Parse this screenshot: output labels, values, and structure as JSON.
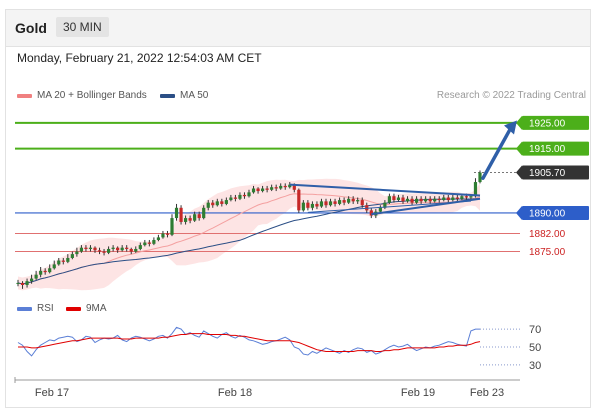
{
  "header": {
    "instrument": "Gold",
    "timeframe": "30 MIN"
  },
  "datetime": "Monday, February 21, 2022 12:54:03 AM CET",
  "legend": {
    "main": [
      {
        "label": "MA 20 + Bollinger Bands",
        "color": "#f08080"
      },
      {
        "label": "MA 50",
        "color": "#2b4f86"
      }
    ],
    "rsi": [
      {
        "label": "RSI",
        "color": "#5b7fd6"
      },
      {
        "label": "9MA",
        "color": "#e00000"
      }
    ]
  },
  "copyright": "Research © 2022 Trading Central",
  "colors": {
    "green": "#4caf1a",
    "blue": "#2d5ec9",
    "red": "#cc2222",
    "dark": "#333333",
    "arrow": "#2f5fa8"
  },
  "chart_data": [
    {
      "type": "candlestick",
      "ylim": [
        1862,
        1930
      ],
      "levels": [
        {
          "value": 1925.0,
          "label": "1925.00",
          "style": "green-box"
        },
        {
          "value": 1915.0,
          "label": "1915.00",
          "style": "green-box"
        },
        {
          "value": 1905.7,
          "label": "1905.70",
          "style": "dark-box"
        },
        {
          "value": 1890.0,
          "label": "1890.00",
          "style": "blue-box"
        },
        {
          "value": 1882.0,
          "label": "1882.00",
          "style": "red-text"
        },
        {
          "value": 1875.0,
          "label": "1875.00",
          "style": "red-text"
        }
      ],
      "x_ticks": [
        "Feb 17",
        "Feb 18",
        "Feb 19",
        "Feb 23"
      ],
      "candles": [
        [
          1862.5,
          1862.8,
          1861.5,
          1864.0
        ],
        [
          1862.8,
          1862.0,
          1860.5,
          1863.5
        ],
        [
          1862.0,
          1863.5,
          1861.0,
          1864.5
        ],
        [
          1863.5,
          1864.5,
          1862.5,
          1866.0
        ],
        [
          1864.5,
          1866.0,
          1864.0,
          1867.5
        ],
        [
          1866.0,
          1867.5,
          1865.0,
          1869.0
        ],
        [
          1867.5,
          1867.0,
          1866.0,
          1868.5
        ],
        [
          1867.0,
          1868.5,
          1866.5,
          1870.0
        ],
        [
          1868.5,
          1870.0,
          1868.0,
          1871.5
        ],
        [
          1870.0,
          1871.5,
          1869.5,
          1872.5
        ],
        [
          1871.5,
          1871.0,
          1870.0,
          1872.5
        ],
        [
          1871.0,
          1872.5,
          1870.5,
          1874.0
        ],
        [
          1872.5,
          1874.0,
          1872.0,
          1875.0
        ],
        [
          1874.0,
          1875.0,
          1873.0,
          1876.5
        ],
        [
          1875.0,
          1876.5,
          1874.5,
          1877.5
        ],
        [
          1876.5,
          1876.0,
          1875.0,
          1877.5
        ],
        [
          1876.0,
          1876.5,
          1875.0,
          1877.5
        ],
        [
          1876.5,
          1875.5,
          1874.5,
          1877.0
        ],
        [
          1875.5,
          1875.0,
          1874.0,
          1876.5
        ],
        [
          1875.0,
          1874.5,
          1873.5,
          1876.0
        ],
        [
          1874.5,
          1876.0,
          1874.0,
          1877.0
        ],
        [
          1876.0,
          1876.5,
          1875.0,
          1877.5
        ],
        [
          1876.5,
          1875.5,
          1874.5,
          1877.0
        ],
        [
          1875.5,
          1876.5,
          1875.0,
          1877.5
        ],
        [
          1876.5,
          1876.0,
          1875.0,
          1877.5
        ],
        [
          1876.0,
          1875.0,
          1874.0,
          1876.5
        ],
        [
          1875.0,
          1876.0,
          1874.5,
          1877.0
        ],
        [
          1876.0,
          1877.5,
          1875.5,
          1878.5
        ],
        [
          1877.5,
          1878.5,
          1877.0,
          1879.5
        ],
        [
          1878.5,
          1878.0,
          1877.0,
          1879.5
        ],
        [
          1878.0,
          1879.5,
          1877.5,
          1880.5
        ],
        [
          1879.5,
          1880.5,
          1879.0,
          1881.5
        ],
        [
          1880.5,
          1882.0,
          1880.0,
          1883.0
        ],
        [
          1882.0,
          1881.5,
          1880.5,
          1883.0
        ],
        [
          1881.5,
          1888.0,
          1881.0,
          1889.5
        ],
        [
          1888.0,
          1892.0,
          1887.0,
          1893.5
        ],
        [
          1892.0,
          1886.5,
          1885.5,
          1893.0
        ],
        [
          1886.5,
          1888.0,
          1885.5,
          1889.0
        ],
        [
          1888.0,
          1887.0,
          1886.0,
          1889.0
        ],
        [
          1887.0,
          1889.5,
          1886.5,
          1890.5
        ],
        [
          1889.5,
          1888.0,
          1887.0,
          1890.5
        ],
        [
          1888.0,
          1892.0,
          1887.5,
          1893.0
        ],
        [
          1892.0,
          1894.0,
          1891.0,
          1895.0
        ],
        [
          1894.0,
          1893.0,
          1892.0,
          1895.0
        ],
        [
          1893.0,
          1894.5,
          1892.5,
          1895.5
        ],
        [
          1894.5,
          1893.5,
          1892.5,
          1895.5
        ],
        [
          1893.5,
          1895.0,
          1893.0,
          1896.0
        ],
        [
          1895.0,
          1896.0,
          1894.5,
          1897.0
        ],
        [
          1896.0,
          1895.5,
          1894.5,
          1897.0
        ],
        [
          1895.5,
          1897.0,
          1895.0,
          1898.0
        ],
        [
          1897.0,
          1896.5,
          1895.5,
          1898.0
        ],
        [
          1896.5,
          1898.0,
          1896.0,
          1899.0
        ],
        [
          1898.0,
          1899.5,
          1897.5,
          1900.5
        ],
        [
          1899.5,
          1898.5,
          1897.5,
          1900.0
        ],
        [
          1898.5,
          1899.5,
          1898.0,
          1900.5
        ],
        [
          1899.5,
          1899.0,
          1898.0,
          1900.5
        ],
        [
          1899.0,
          1900.0,
          1898.5,
          1901.0
        ],
        [
          1900.0,
          1899.5,
          1898.5,
          1901.0
        ],
        [
          1899.5,
          1900.5,
          1899.0,
          1901.5
        ],
        [
          1900.5,
          1900.0,
          1899.0,
          1901.5
        ],
        [
          1900.0,
          1901.0,
          1899.5,
          1902.0
        ],
        [
          1901.0,
          1899.0,
          1898.0,
          1901.5
        ],
        [
          1899.0,
          1891.0,
          1890.0,
          1899.5
        ],
        [
          1891.0,
          1894.0,
          1890.5,
          1895.0
        ],
        [
          1894.0,
          1892.0,
          1891.0,
          1895.0
        ],
        [
          1892.0,
          1893.5,
          1891.0,
          1894.5
        ],
        [
          1893.5,
          1892.5,
          1891.5,
          1894.5
        ],
        [
          1892.5,
          1894.5,
          1892.0,
          1895.5
        ],
        [
          1894.5,
          1893.0,
          1892.0,
          1895.5
        ],
        [
          1893.0,
          1894.5,
          1892.5,
          1895.5
        ],
        [
          1894.5,
          1893.5,
          1892.5,
          1895.5
        ],
        [
          1893.5,
          1895.0,
          1893.0,
          1896.0
        ],
        [
          1895.0,
          1894.0,
          1893.0,
          1896.0
        ],
        [
          1894.0,
          1895.5,
          1893.5,
          1896.5
        ],
        [
          1895.5,
          1894.5,
          1893.5,
          1896.5
        ],
        [
          1894.5,
          1895.0,
          1893.5,
          1896.0
        ],
        [
          1895.0,
          1893.0,
          1892.0,
          1896.0
        ],
        [
          1893.0,
          1891.0,
          1890.0,
          1894.0
        ],
        [
          1891.0,
          1889.0,
          1888.0,
          1892.0
        ],
        [
          1889.0,
          1890.5,
          1888.0,
          1891.5
        ],
        [
          1890.5,
          1892.0,
          1890.0,
          1893.0
        ],
        [
          1892.0,
          1894.0,
          1891.5,
          1895.0
        ],
        [
          1894.0,
          1896.5,
          1893.5,
          1897.5
        ],
        [
          1896.5,
          1895.0,
          1894.0,
          1897.5
        ],
        [
          1895.0,
          1896.0,
          1894.5,
          1897.0
        ],
        [
          1896.0,
          1894.5,
          1893.5,
          1897.0
        ],
        [
          1894.5,
          1895.5,
          1894.0,
          1896.5
        ],
        [
          1895.5,
          1894.0,
          1893.0,
          1896.5
        ],
        [
          1894.0,
          1895.5,
          1893.5,
          1896.5
        ],
        [
          1895.5,
          1894.5,
          1893.5,
          1896.5
        ],
        [
          1894.5,
          1895.5,
          1894.0,
          1896.5
        ],
        [
          1895.5,
          1894.5,
          1893.5,
          1896.5
        ],
        [
          1894.5,
          1895.5,
          1894.0,
          1896.5
        ],
        [
          1895.5,
          1895.0,
          1894.0,
          1896.5
        ],
        [
          1895.0,
          1896.0,
          1894.5,
          1897.0
        ],
        [
          1896.0,
          1895.0,
          1894.0,
          1897.0
        ],
        [
          1895.0,
          1896.0,
          1894.5,
          1897.0
        ],
        [
          1896.0,
          1895.5,
          1894.5,
          1897.0
        ],
        [
          1895.5,
          1896.5,
          1895.0,
          1897.5
        ],
        [
          1896.5,
          1896.0,
          1895.0,
          1897.5
        ],
        [
          1896.0,
          1896.5,
          1895.0,
          1897.0
        ],
        [
          1896.5,
          1902.0,
          1896.0,
          1903.5
        ],
        [
          1902.0,
          1905.7,
          1901.5,
          1906.5
        ]
      ],
      "patterns": {
        "wedge_upper": [
          [
            1,
            1901.0
          ],
          [
            1,
            1896.8
          ]
        ],
        "wedge_lower": [
          [
            1,
            1889.5
          ],
          [
            1,
            1895.5
          ]
        ],
        "forecast_arrow": {
          "from": 1903.5,
          "to": 1924.0
        }
      }
    },
    {
      "type": "line",
      "ylim": [
        22,
        78
      ],
      "y_ticks": [
        70,
        50,
        30
      ],
      "series": [
        {
          "name": "RSI",
          "values": [
            55,
            52,
            45,
            40,
            47,
            52,
            55,
            58,
            57,
            60,
            61,
            62,
            61,
            56,
            58,
            62,
            61,
            55,
            58,
            60,
            59,
            60,
            63,
            58,
            56,
            60,
            62,
            61,
            59,
            57,
            59,
            62,
            63,
            60,
            65,
            72,
            70,
            64,
            66,
            63,
            61,
            68,
            65,
            62,
            60,
            64,
            66,
            62,
            60,
            63,
            61,
            58,
            57,
            55,
            53,
            54,
            56,
            57,
            59,
            61,
            58,
            50,
            48,
            42,
            41,
            45,
            43,
            46,
            49,
            47,
            45,
            43,
            46,
            44,
            47,
            49,
            48,
            44,
            46,
            42,
            44,
            47,
            50,
            52,
            50,
            51,
            53,
            49,
            46,
            48,
            50,
            49,
            51,
            52,
            54,
            56,
            55,
            53,
            52,
            51,
            68,
            70,
            70
          ]
        },
        {
          "name": "9MA",
          "values": [
            50,
            50,
            50,
            49,
            49,
            50,
            51,
            52,
            53,
            54,
            55,
            56,
            57,
            57,
            58,
            59,
            60,
            60,
            60,
            60,
            60,
            60,
            60,
            59,
            59,
            59,
            60,
            60,
            60,
            60,
            60,
            60,
            61,
            61,
            62,
            63,
            64,
            64,
            65,
            65,
            65,
            65,
            64,
            64,
            64,
            64,
            64,
            63,
            63,
            62,
            62,
            61,
            60,
            59,
            58,
            57,
            57,
            57,
            57,
            57,
            57,
            56,
            55,
            53,
            51,
            49,
            47,
            46,
            45,
            45,
            45,
            45,
            45,
            45,
            45,
            46,
            46,
            46,
            46,
            45,
            45,
            46,
            46,
            47,
            47,
            48,
            49,
            49,
            49,
            49,
            49,
            49,
            49,
            50,
            50,
            51,
            51,
            52,
            52,
            52,
            53,
            55,
            56
          ]
        }
      ]
    }
  ]
}
